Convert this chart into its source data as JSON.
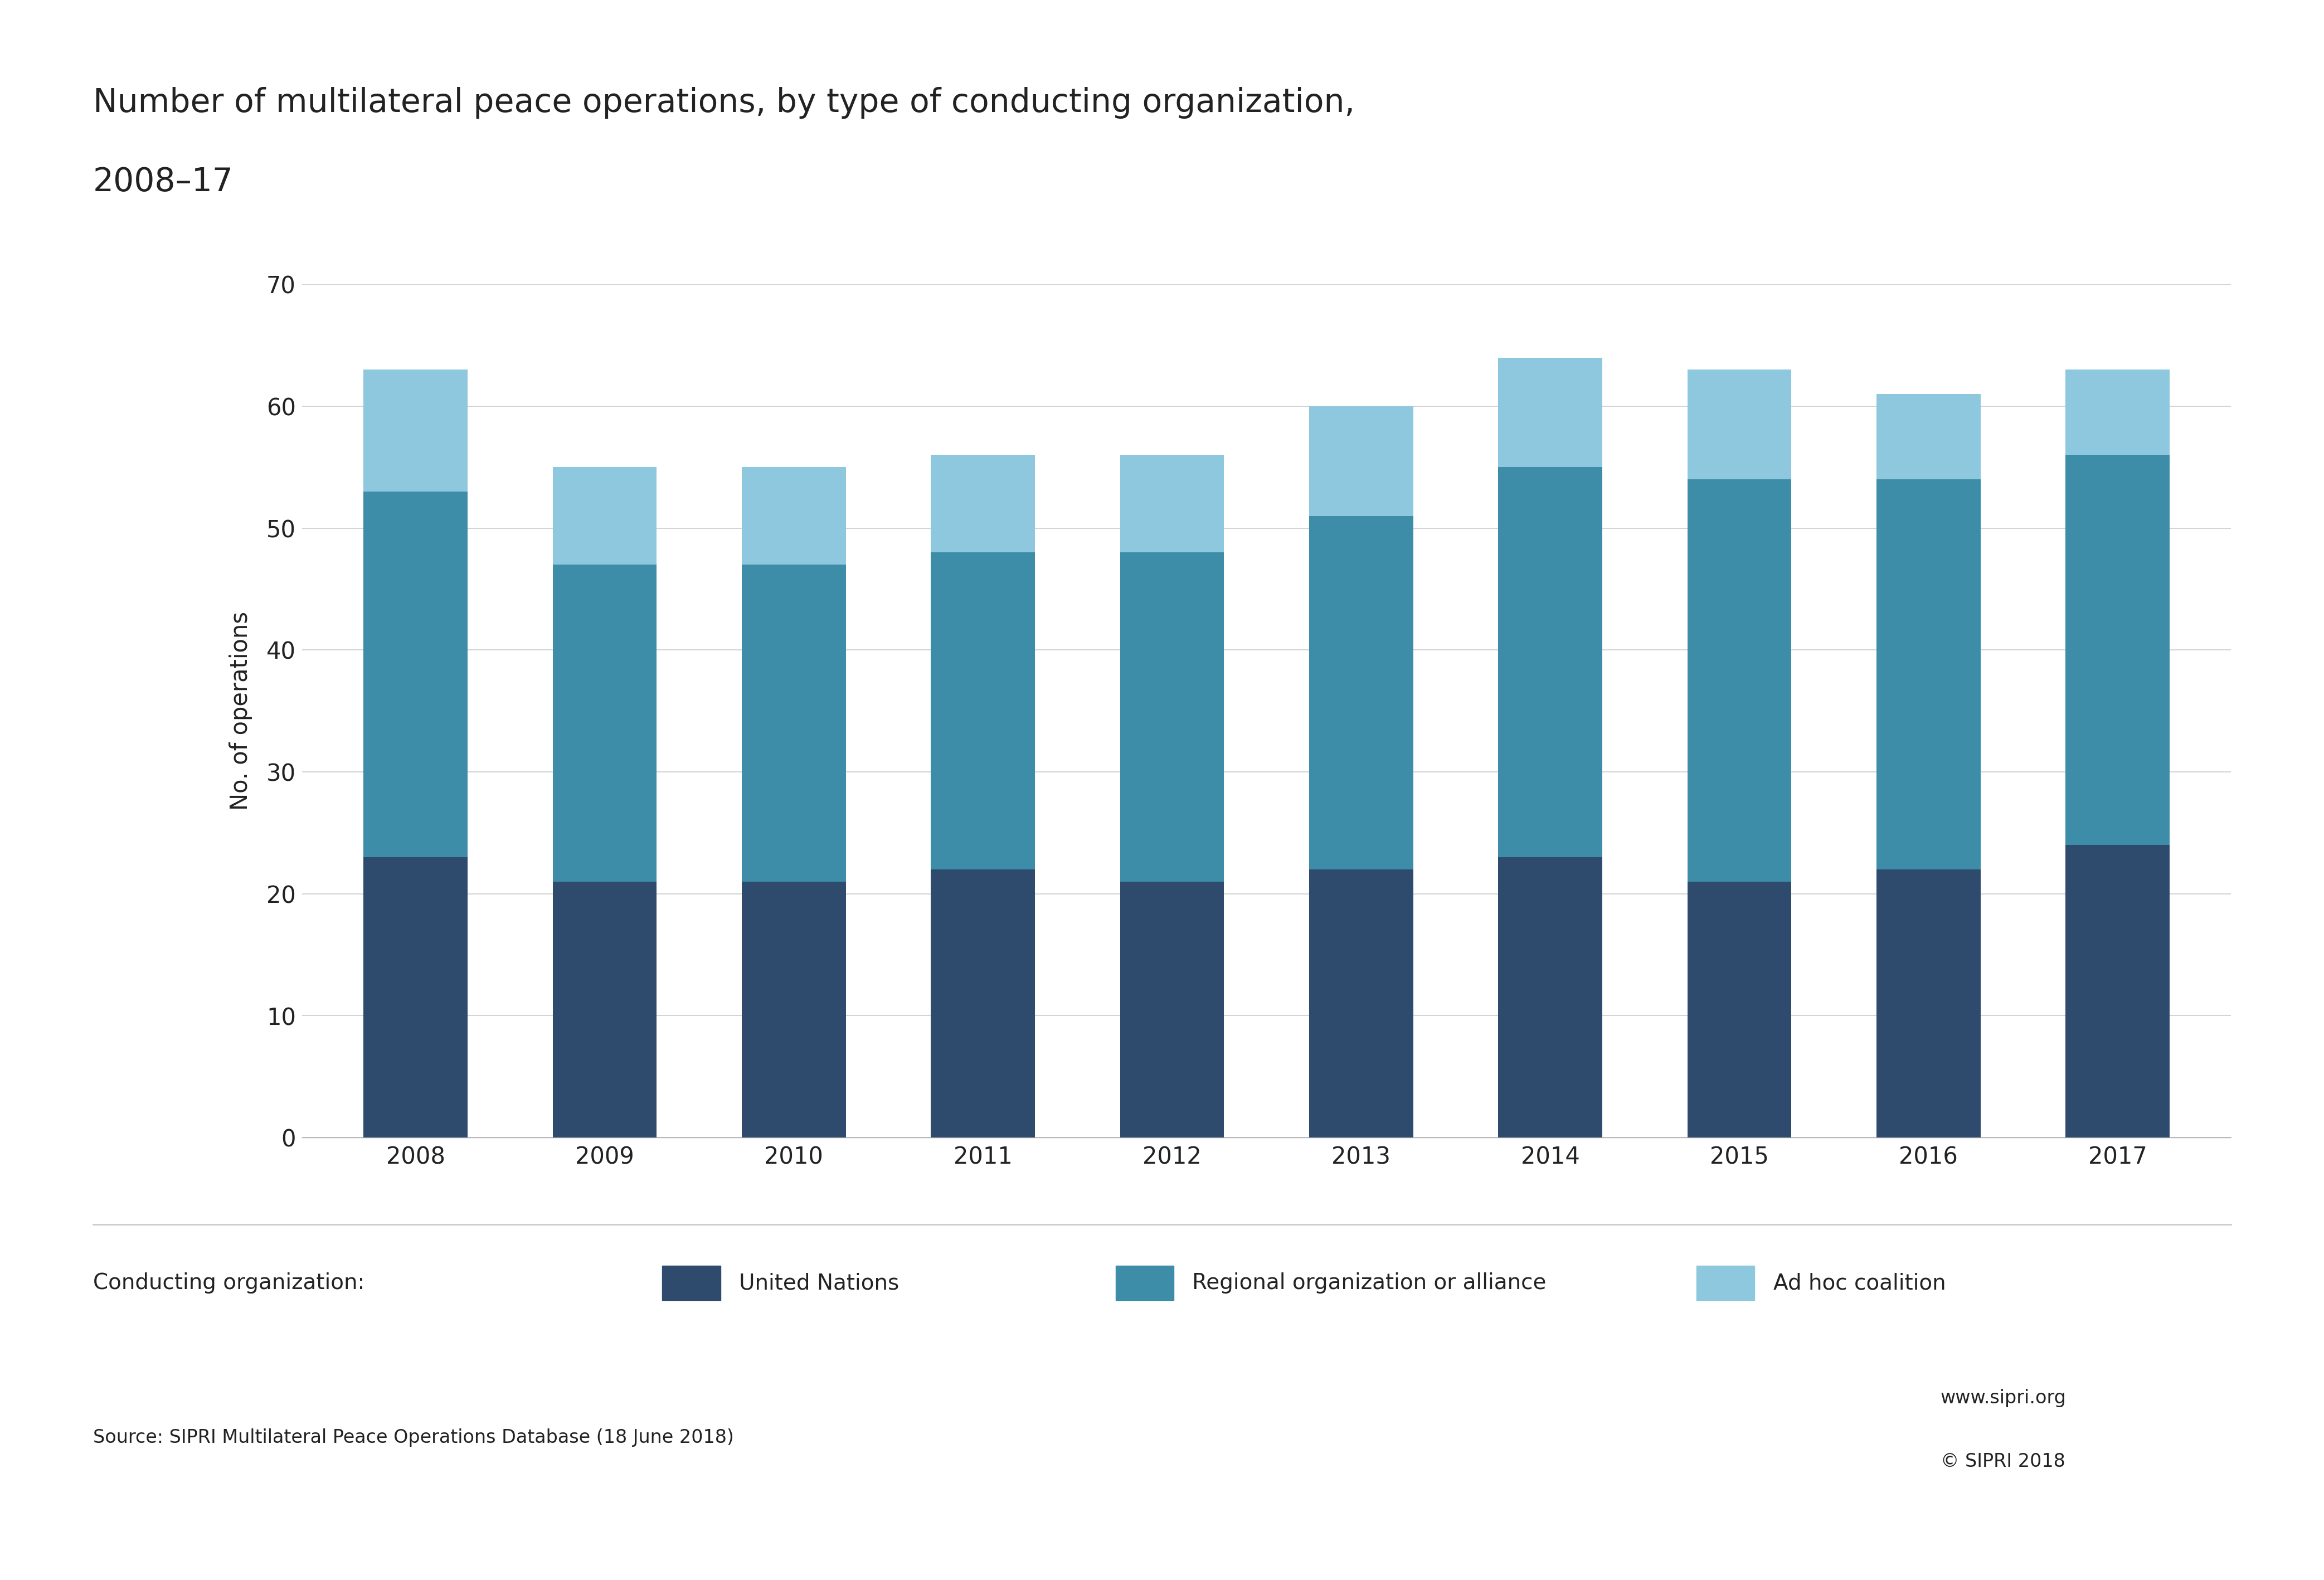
{
  "years": [
    "2008",
    "2009",
    "2010",
    "2011",
    "2012",
    "2013",
    "2014",
    "2015",
    "2016",
    "2017"
  ],
  "united_nations": [
    23,
    21,
    21,
    22,
    21,
    22,
    23,
    21,
    22,
    24
  ],
  "regional_org": [
    30,
    26,
    26,
    26,
    27,
    29,
    32,
    33,
    32,
    32
  ],
  "ad_hoc": [
    10,
    8,
    8,
    8,
    8,
    9,
    9,
    9,
    7,
    7
  ],
  "color_un": "#2e4b6e",
  "color_regional": "#3d8ca8",
  "color_adhoc": "#8ec8de",
  "title_line1": "Number of multilateral peace operations, by type of conducting organization,",
  "title_line2": "2008–17",
  "ylabel": "No. of operations",
  "ylim": [
    0,
    70
  ],
  "yticks": [
    0,
    10,
    20,
    30,
    40,
    50,
    60,
    70
  ],
  "legend_prefix": "Conducting organization:",
  "legend_un": "United Nations",
  "legend_regional": "Regional organization or alliance",
  "legend_adhoc": "Ad hoc coalition",
  "source_text": "Source: SIPRI Multilateral Peace Operations Database (18 June 2018)",
  "website_text": "www.sipri.org",
  "copyright_text": "© SIPRI 2018",
  "bg_color": "#ffffff",
  "title_fontsize": 42,
  "axis_label_fontsize": 30,
  "tick_fontsize": 30,
  "legend_fontsize": 28,
  "source_fontsize": 24,
  "bar_width": 0.55,
  "grid_color": "#cccccc",
  "spine_color": "#aaaaaa",
  "text_color": "#222222",
  "logo_color": "#ce1126"
}
